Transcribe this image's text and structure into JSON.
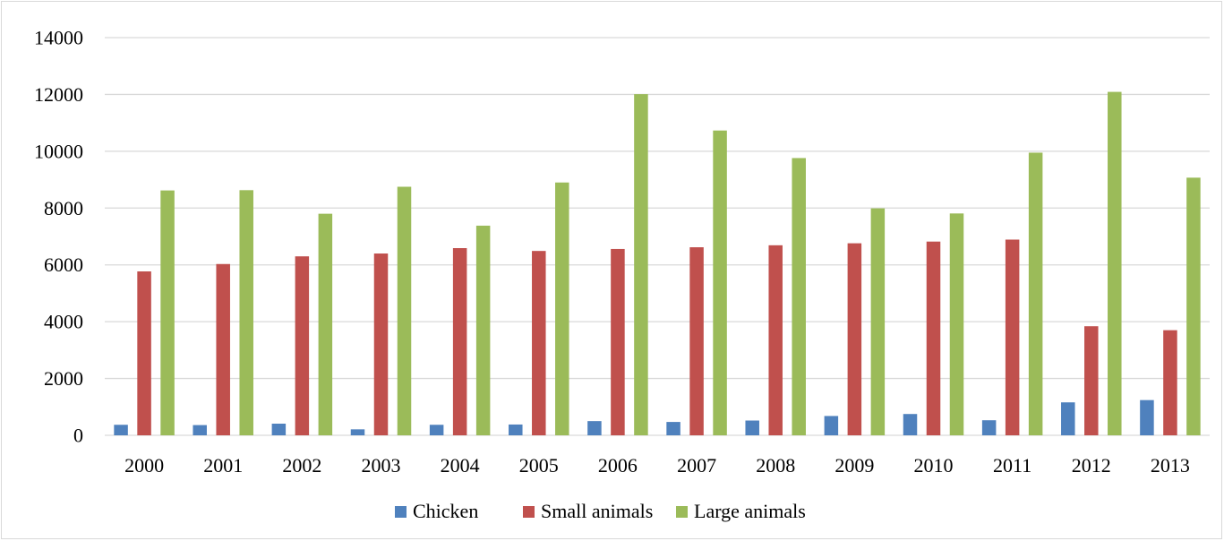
{
  "chart_data": {
    "type": "bar",
    "title": "",
    "xlabel": "",
    "ylabel": "",
    "ylim": [
      0,
      14000
    ],
    "yticks": [
      0,
      2000,
      4000,
      6000,
      8000,
      10000,
      12000,
      14000
    ],
    "grid": true,
    "legend_position": "bottom",
    "categories": [
      "2000",
      "2001",
      "2002",
      "2003",
      "2004",
      "2005",
      "2006",
      "2007",
      "2008",
      "2009",
      "2010",
      "2011",
      "2012",
      "2013"
    ],
    "series": [
      {
        "name": "Chicken",
        "color": "#4f81bd",
        "values": [
          370,
          360,
          410,
          210,
          370,
          380,
          500,
          470,
          520,
          680,
          750,
          530,
          1160,
          1240
        ]
      },
      {
        "name": "Small animals",
        "color": "#c0504d",
        "values": [
          5770,
          6030,
          6300,
          6400,
          6590,
          6490,
          6560,
          6620,
          6690,
          6760,
          6820,
          6890,
          3840,
          3700
        ]
      },
      {
        "name": "Large animals",
        "color": "#9bbb59",
        "values": [
          8620,
          8630,
          7800,
          8750,
          7380,
          8900,
          12010,
          10730,
          9760,
          7990,
          7810,
          9950,
          12090,
          9070
        ]
      }
    ]
  }
}
